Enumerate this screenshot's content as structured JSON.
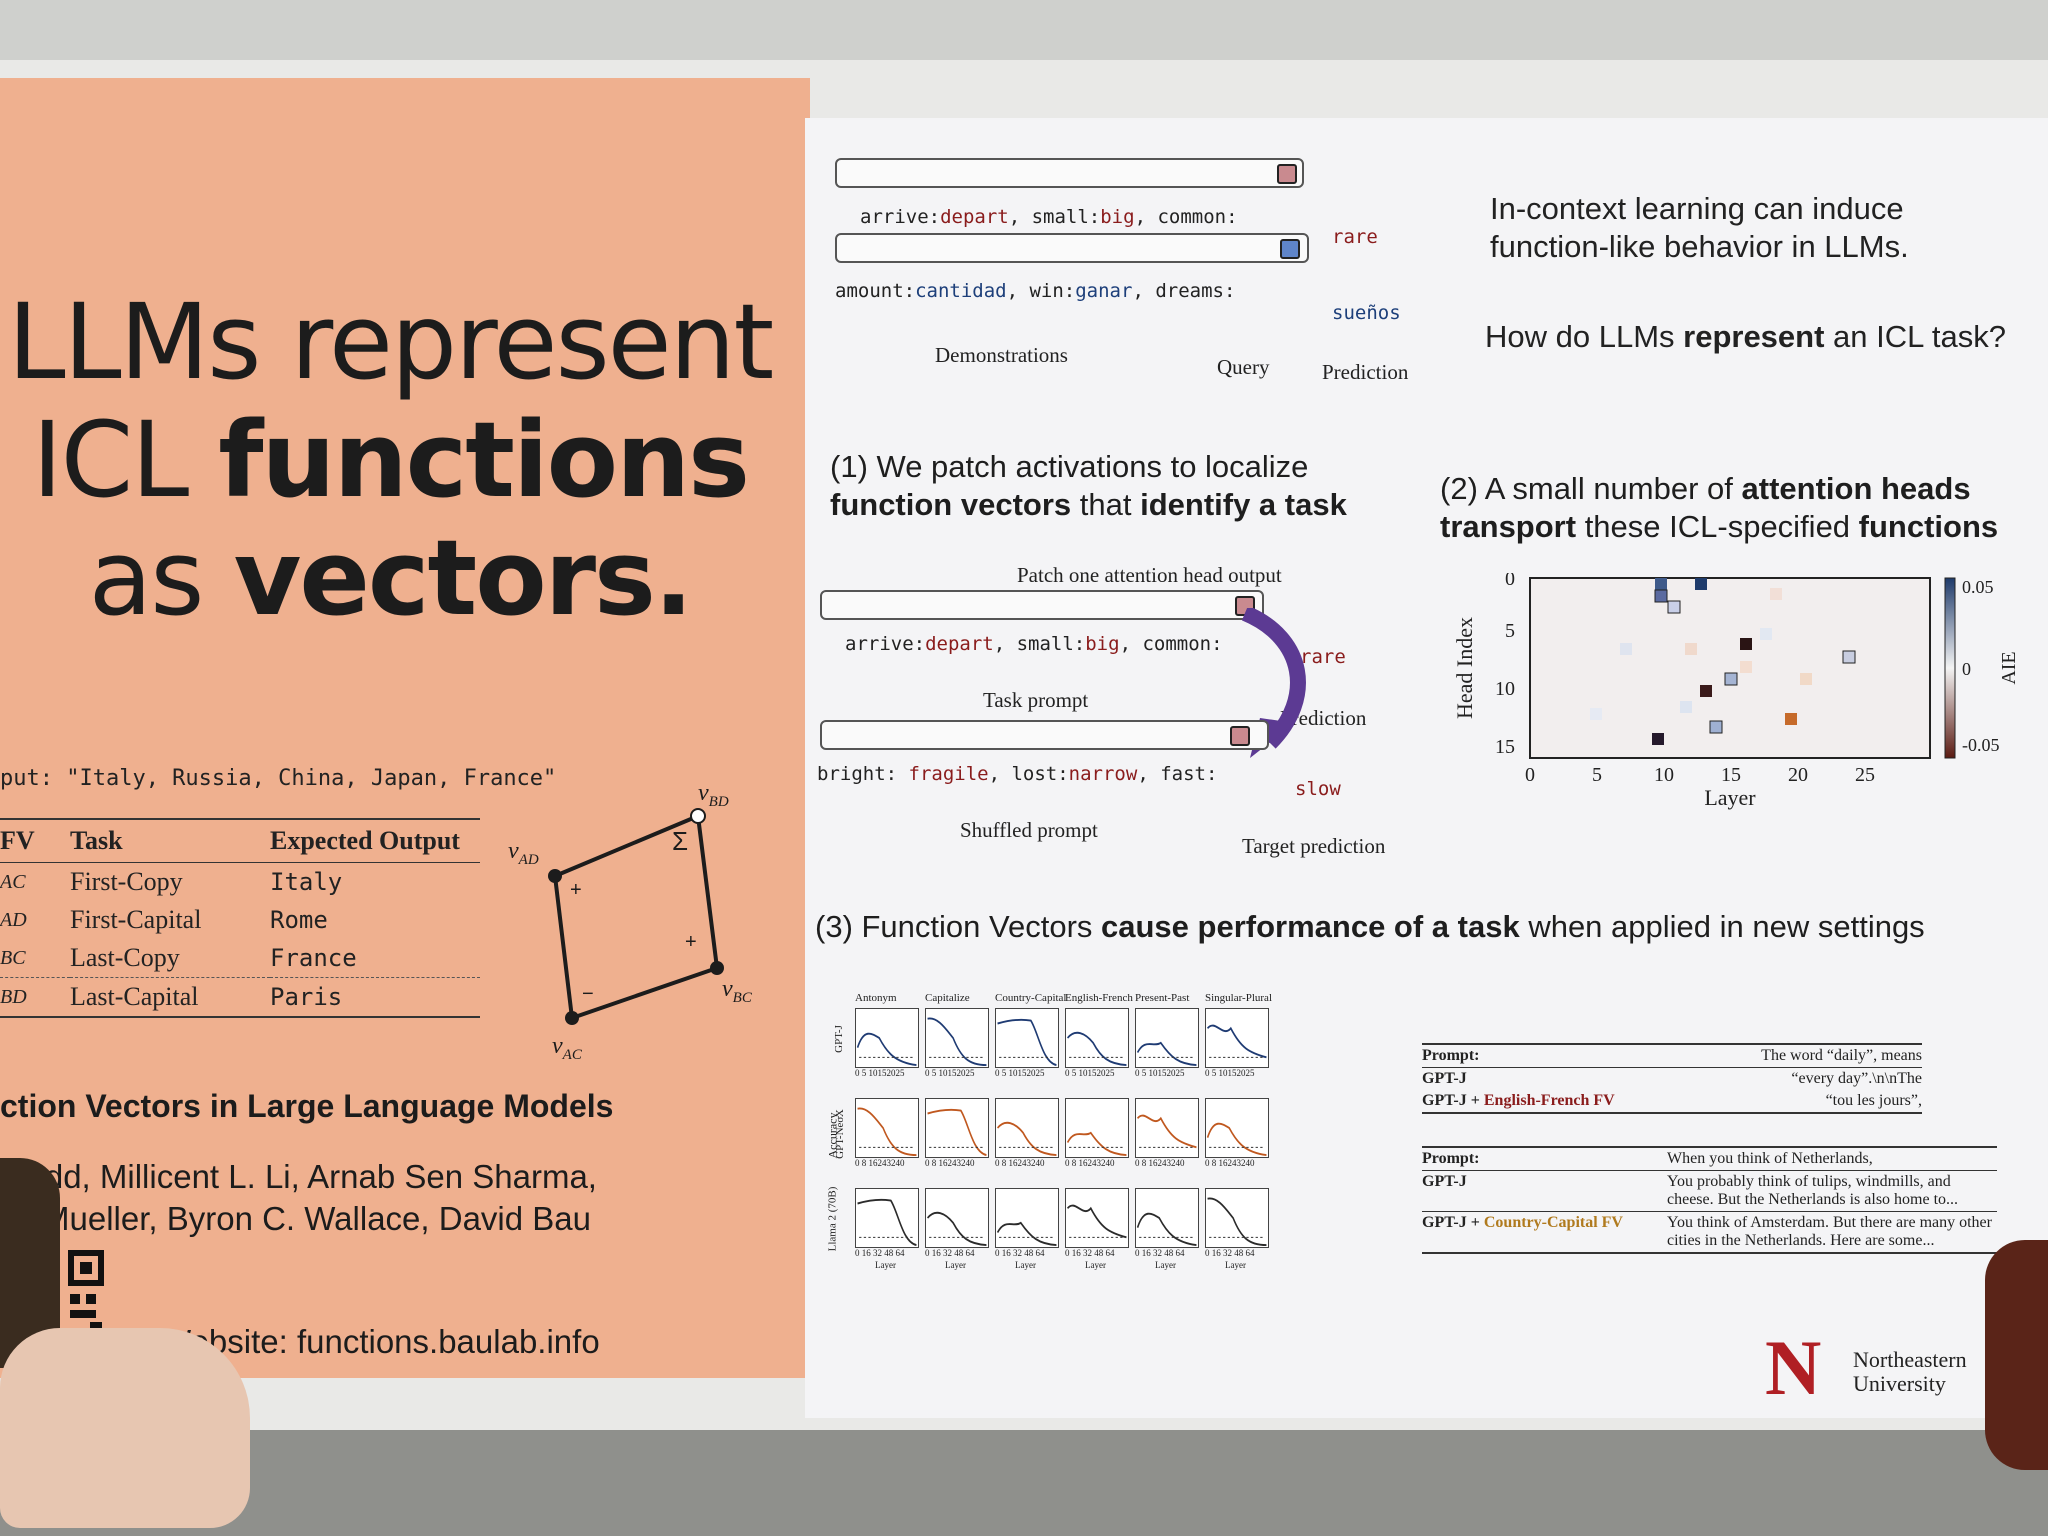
{
  "left": {
    "title_line1": "LLMs represent",
    "title_line2_a": "ICL ",
    "title_line2_b": "functions",
    "title_line3_a": "as ",
    "title_line3_b": "vectors.",
    "input_line": "put: \"Italy, Russia, China, Japan, France\"",
    "table_headers": [
      "FV",
      "Task",
      "Expected Output"
    ],
    "rows": [
      {
        "fv": "AC",
        "task": "First-Copy",
        "out": "Italy"
      },
      {
        "fv": "AD",
        "task": "First-Capital",
        "out": "Rome"
      },
      {
        "fv": "BC",
        "task": "Last-Copy",
        "out": "France"
      },
      {
        "fv": "BD",
        "task": "Last-Capital",
        "out": "Paris"
      }
    ],
    "diagram": {
      "v_ad": "v",
      "v_ad_sub": "AD",
      "v_bd": "v",
      "v_bd_sub": "BD",
      "v_bd_sup": "*",
      "v_bc": "v",
      "v_bc_sub": "BC",
      "v_ac": "v",
      "v_ac_sub": "AC",
      "plus1": "+",
      "plus2": "+",
      "minus": "−",
      "sigma": "Σ"
    },
    "paper_title": "ction Vectors in Large Language Models",
    "authors_line1": "Todd, Millicent L. Li, Arnab Sen Sharma,",
    "authors_line2": "Mueller, Byron C. Wallace, David Bau",
    "website": "Website: functions.baulab.info"
  },
  "top": {
    "ex1_a": "arrive:",
    "ex1_b": "depart",
    "ex1_c": ", small:",
    "ex1_d": "big",
    "ex1_e": ", common:",
    "ex1_pred": "rare",
    "ex2_a": "amount:",
    "ex2_b": "cantidad",
    "ex2_c": ", win:",
    "ex2_d": "ganar",
    "ex2_e": ", dreams:",
    "ex2_pred": "sueños",
    "label_demos": "Demonstrations",
    "label_query": "Query",
    "label_pred": "Prediction",
    "intro1": "In-context learning can induce function-like behavior in LLMs.",
    "intro2_a": "How do LLMs ",
    "intro2_b": "represent",
    "intro2_c": " an ICL task?"
  },
  "sec1": {
    "head_a": "(1) We patch activations to localize",
    "head_b": "function vectors",
    "head_c": " that ",
    "head_d": "identify a task",
    "patch_label": "Patch one attention head output",
    "ex1_a": "arrive:",
    "ex1_b": "depart",
    "ex1_c": ", small:",
    "ex1_d": "big",
    "ex1_e": ", common:",
    "ex1_pred": "rare",
    "task_prompt": "Task prompt",
    "prediction": "Prediction",
    "ex2_a": "bright: ",
    "ex2_b": "fragile",
    "ex2_c": ", lost:",
    "ex2_d": "narrow",
    "ex2_e": ", fast:",
    "ex2_pred": "slow",
    "shuffled_prompt": "Shuffled prompt",
    "target_prediction": "Target prediction"
  },
  "sec2": {
    "head_a": "(2) A small number of ",
    "head_b": "attention heads",
    "head_c": "transport",
    "head_d": " these ICL-specified ",
    "head_e": "functions",
    "ylabel": "Head Index",
    "xlabel": "Layer",
    "cbar_label": "AIE",
    "cbar_ticks": [
      "0.05",
      "0",
      "-0.05"
    ],
    "xticks": [
      "0",
      "5",
      "10",
      "15",
      "20",
      "25"
    ],
    "yticks": [
      "0",
      "5",
      "10",
      "15"
    ]
  },
  "sec3": {
    "head_a": "(3) Function Vectors ",
    "head_b": "cause performance of a task",
    "head_c": " when applied in new settings",
    "panel_titles": [
      "Antonym",
      "Capitalize",
      "Country-Capital",
      "English-French",
      "Present-Past",
      "Singular-Plural"
    ],
    "row_labels": [
      "GPT-J",
      "GPT-NeoX",
      "Llama 2 (70B)"
    ],
    "accuracy_label": "Accuracy",
    "layer_label": "Layer",
    "xticks_gptj": "0  5 10152025",
    "xticks_neox": "0  8 16243240",
    "xticks_llama": "0  16 32 48 64",
    "ex1_prompt_label": "Prompt:",
    "ex1_prompt": "The word “daily”, means",
    "ex1_gptj_label": "GPT-J",
    "ex1_gptj": "“every day”.\\n\\nThe",
    "ex1_fv_label_a": "GPT-J + ",
    "ex1_fv_label_b": "English-French FV",
    "ex1_fv": "“tou les jours”,",
    "ex2_prompt_label": "Prompt:",
    "ex2_prompt": "When you think of Netherlands,",
    "ex2_gptj_label": "GPT-J",
    "ex2_gptj": "You probably think of tulips, windmills, and cheese. But the Netherlands is also home to...",
    "ex2_fv_label_a": "GPT-J + ",
    "ex2_fv_label_b": "Country-Capital FV",
    "ex2_fv": "You think of Amsterdam. But there are many other cities in the Netherlands. Here are some..."
  },
  "logo": {
    "name1": "Northeastern",
    "name2": "University"
  },
  "colors": {
    "left_bg": "#efb08f",
    "red_accent": "#8a1c1c",
    "blue_accent": "#1d3f7a",
    "arrow_purple": "#5c3a93",
    "gptj_line": "#1f3b73",
    "neox_line": "#c0581f",
    "llama_line": "#2b2b2b"
  }
}
